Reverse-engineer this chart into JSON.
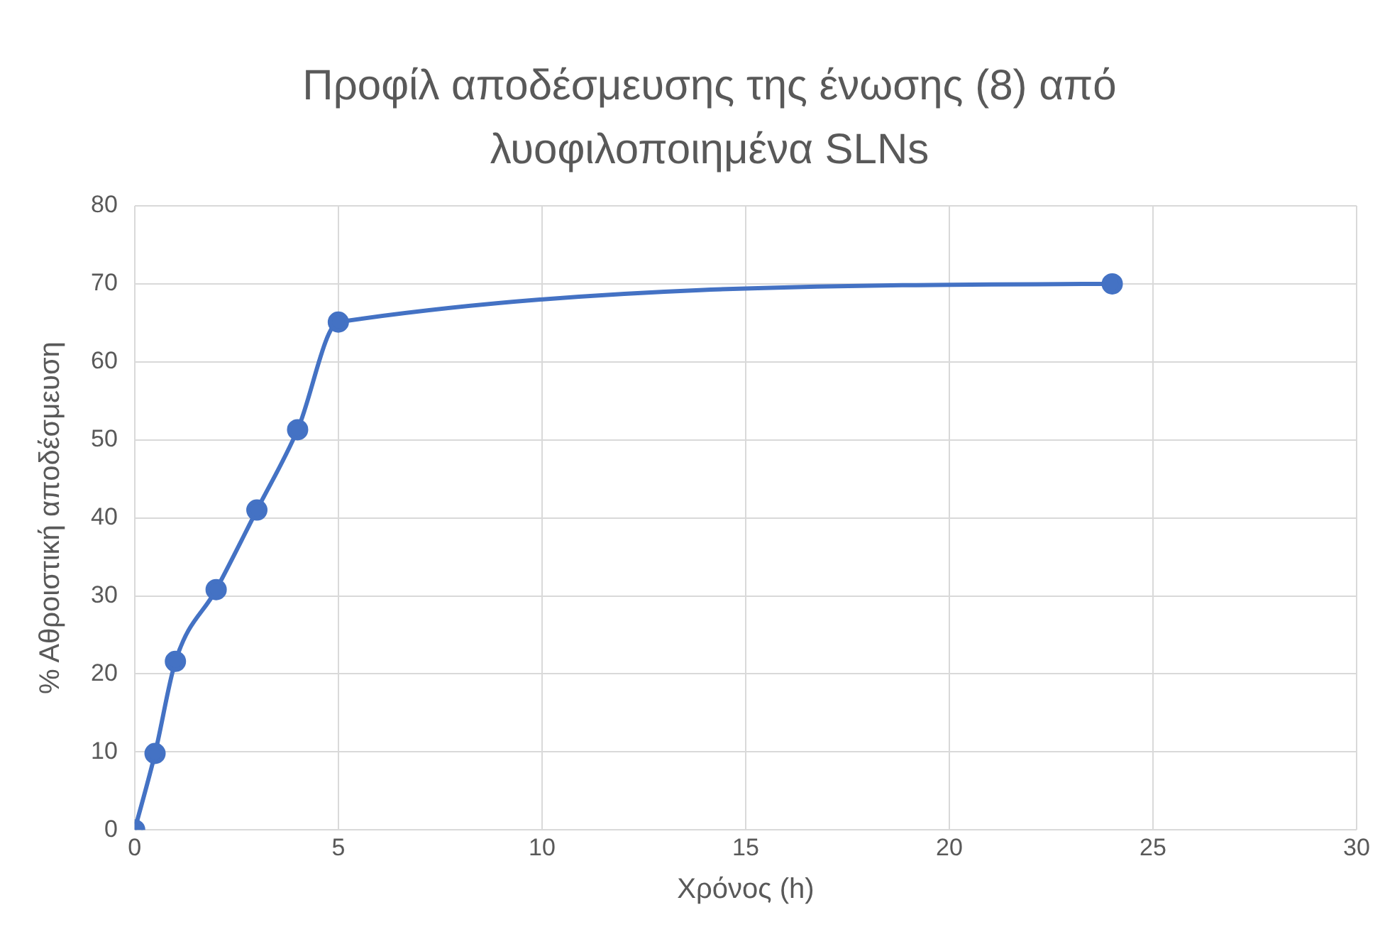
{
  "chart_data": {
    "type": "line",
    "title": "Προφίλ αποδέσμευσης της ένωσης (8) από λυοφιλοποιημένα SLNs",
    "xlabel": "Χρόνος (h)",
    "ylabel": "% Αθροιστική αποδέσμευση",
    "x": [
      0,
      0.5,
      1,
      2,
      3,
      4,
      5,
      24
    ],
    "series": [
      {
        "color": "#4472c4",
        "values": [
          0,
          9.8,
          21.6,
          30.8,
          41,
          51.3,
          65.1,
          70
        ]
      }
    ],
    "xlim": [
      0,
      30
    ],
    "xticks": [
      0,
      5,
      10,
      15,
      20,
      25,
      30
    ],
    "ylim": [
      0,
      80
    ],
    "yticks": [
      0,
      10,
      20,
      30,
      40,
      50,
      60,
      70,
      80
    ],
    "grid": true,
    "legend": false,
    "marker": "circle",
    "line_style": "solid"
  }
}
